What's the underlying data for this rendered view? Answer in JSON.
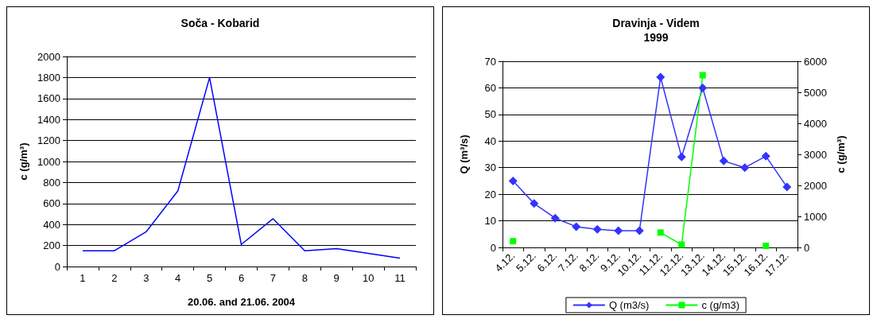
{
  "chart_data": [
    {
      "type": "line",
      "title": "Soča - Kobarid",
      "xlabel": "20.06. and 21.06. 2004",
      "ylabel": "c (g/m³)",
      "categories": [
        "1",
        "2",
        "3",
        "4",
        "5",
        "6",
        "7",
        "8",
        "9",
        "10",
        "11"
      ],
      "series": [
        {
          "color": "#0000ff",
          "values": [
            150,
            150,
            330,
            720,
            1800,
            210,
            455,
            150,
            170,
            125,
            80
          ]
        }
      ],
      "ylim": [
        0,
        2000
      ],
      "yticks": [
        0,
        200,
        400,
        600,
        800,
        1000,
        1200,
        1400,
        1600,
        1800,
        2000
      ],
      "grid": "y",
      "legend": false,
      "marker": "none"
    },
    {
      "type": "line",
      "title": "Dravinja - Videm",
      "subtitle": "1999",
      "ylabel": "Q (m³/s)",
      "y2label": "c (g/m³)",
      "categories": [
        "4.12.",
        "5.12.",
        "6.12.",
        "7.12.",
        "8.12.",
        "9.12.",
        "10.12.",
        "11.12.",
        "12.12.",
        "13.12.",
        "14.12.",
        "15.12.",
        "16.12.",
        "17.12."
      ],
      "series": [
        {
          "name": "Q (m3/s)",
          "color": "#3333ff",
          "marker": "diamond",
          "values": [
            25,
            16.5,
            11,
            7.8,
            6.8,
            6.3,
            6.3,
            64,
            34,
            60,
            32.5,
            30,
            34.3,
            22.7
          ]
        },
        {
          "name": "c (g/m3)",
          "color": "#00ff00",
          "marker": "square",
          "axis": "y2",
          "values": [
            200,
            null,
            null,
            null,
            null,
            null,
            null,
            480,
            90,
            5550,
            null,
            null,
            50,
            null
          ]
        }
      ],
      "ylim": [
        0,
        70
      ],
      "yticks": [
        0,
        10,
        20,
        30,
        40,
        50,
        60,
        70
      ],
      "y2lim": [
        0,
        6000
      ],
      "y2ticks": [
        0,
        1000,
        2000,
        3000,
        4000,
        5000,
        6000
      ],
      "grid": "y",
      "legend": "bottom"
    }
  ]
}
